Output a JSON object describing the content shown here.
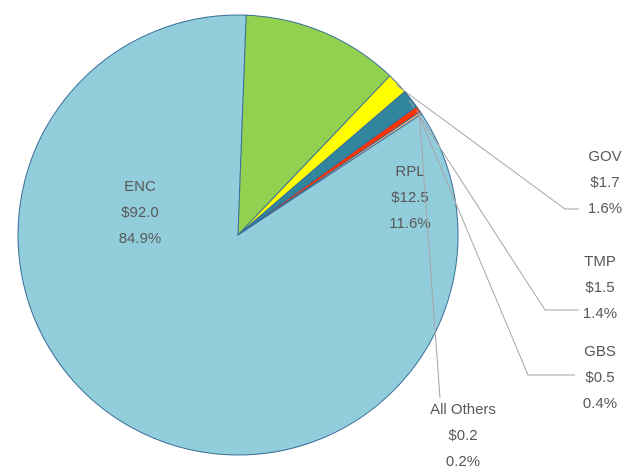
{
  "chart_data": {
    "type": "pie",
    "categories": [
      "ENC",
      "RPL",
      "GOV",
      "TMP",
      "GBS",
      "All Others"
    ],
    "values": [
      92.0,
      12.5,
      1.7,
      1.5,
      0.5,
      0.2
    ],
    "value_labels": [
      "$92.0",
      "$12.5",
      "$1.7",
      "$1.5",
      "$0.5",
      "$0.2"
    ],
    "percent_labels": [
      "84.9%",
      "11.6%",
      "1.6%",
      "1.4%",
      "0.4%",
      "0.2%"
    ],
    "colors": [
      "#92cddc",
      "#92d050",
      "#ffff00",
      "#31859c",
      "#ff3300",
      "#f4b183"
    ]
  }
}
